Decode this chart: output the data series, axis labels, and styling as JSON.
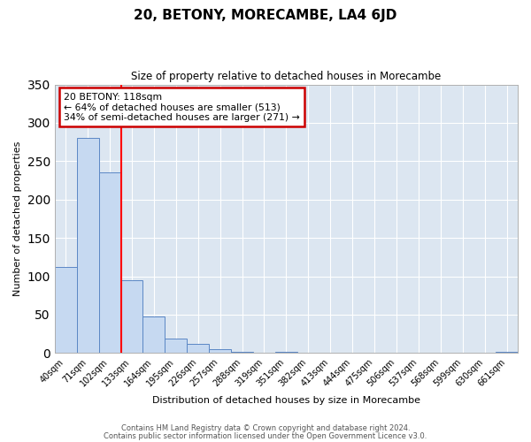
{
  "title": "20, BETONY, MORECAMBE, LA4 6JD",
  "subtitle": "Size of property relative to detached houses in Morecambe",
  "xlabel": "Distribution of detached houses by size in Morecambe",
  "ylabel": "Number of detached properties",
  "bar_values": [
    112,
    280,
    235,
    95,
    48,
    19,
    12,
    5,
    2,
    0,
    2,
    0,
    0,
    0,
    0,
    0,
    0,
    0,
    0,
    0,
    2
  ],
  "bar_labels": [
    "40sqm",
    "71sqm",
    "102sqm",
    "133sqm",
    "164sqm",
    "195sqm",
    "226sqm",
    "257sqm",
    "288sqm",
    "319sqm",
    "351sqm",
    "382sqm",
    "413sqm",
    "444sqm",
    "475sqm",
    "506sqm",
    "537sqm",
    "568sqm",
    "599sqm",
    "630sqm",
    "661sqm"
  ],
  "bar_color": "#c6d9f1",
  "bar_edge_color": "#5b87c5",
  "ylim": [
    0,
    350
  ],
  "yticks": [
    0,
    50,
    100,
    150,
    200,
    250,
    300,
    350
  ],
  "red_line_x": 2.5,
  "annotation_title": "20 BETONY: 118sqm",
  "annotation_line1": "← 64% of detached houses are smaller (513)",
  "annotation_line2": "34% of semi-detached houses are larger (271) →",
  "annotation_box_color": "#ffffff",
  "annotation_box_edge_color": "#cc0000",
  "footer_line1": "Contains HM Land Registry data © Crown copyright and database right 2024.",
  "footer_line2": "Contains public sector information licensed under the Open Government Licence v3.0.",
  "background_color": "#ffffff",
  "plot_bg_color": "#dce6f1",
  "grid_color": "#ffffff"
}
